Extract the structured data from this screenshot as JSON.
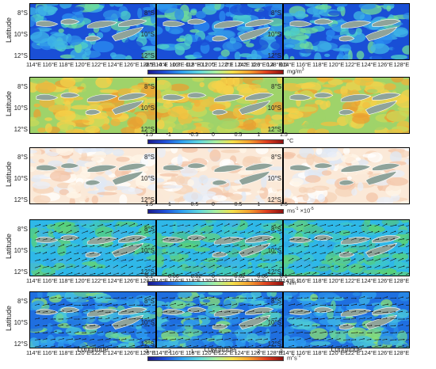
{
  "figure": {
    "y_axis_label": "Latitude",
    "x_axis_label": "Longitude",
    "lat_ticks": [
      "8°S",
      "10°S",
      "12°S"
    ],
    "lon_ticks": [
      "114°E",
      "116°E",
      "118°E",
      "120°E",
      "122°E",
      "124°E",
      "126°E",
      "128°E"
    ]
  },
  "colorbars": [
    {
      "ticks": [
        "-0.5",
        "-0.4",
        "-0.3",
        "-0.2",
        "-0.1",
        "0",
        "0.1",
        "0.2",
        "0.3",
        "0.4",
        "0.5"
      ],
      "unit": "mg/m",
      "unit_sup": "3"
    },
    {
      "ticks": [
        "-1.5",
        "-1",
        "-0.5",
        "0",
        "0.5",
        "1",
        "1.5"
      ],
      "unit": "°C",
      "unit_sup": ""
    },
    {
      "ticks": [
        "-1.5",
        "-1",
        "-0.5",
        "0",
        "0.5",
        "1",
        "1.5"
      ],
      "unit": "ms",
      "unit_sup": "-1",
      "exponent": "×10",
      "exponent_sup": "-5"
    },
    {
      "ticks": [
        "-0.1",
        "-0.06",
        "-0.02",
        "0",
        "0.02",
        "0.06",
        "0.1"
      ],
      "unit": "Nm",
      "unit_sup": "-2"
    },
    {
      "ticks": [
        "-3",
        "-2",
        "-1",
        "0",
        "1",
        "2",
        "3"
      ],
      "unit": "m",
      "unit_sup": "2",
      "unit_tail": "s",
      "unit_tail_sup": "-1"
    }
  ],
  "colors": {
    "land": "#8fa39a",
    "ocean_base": "#3fb6e6",
    "frame": "#000000"
  }
}
